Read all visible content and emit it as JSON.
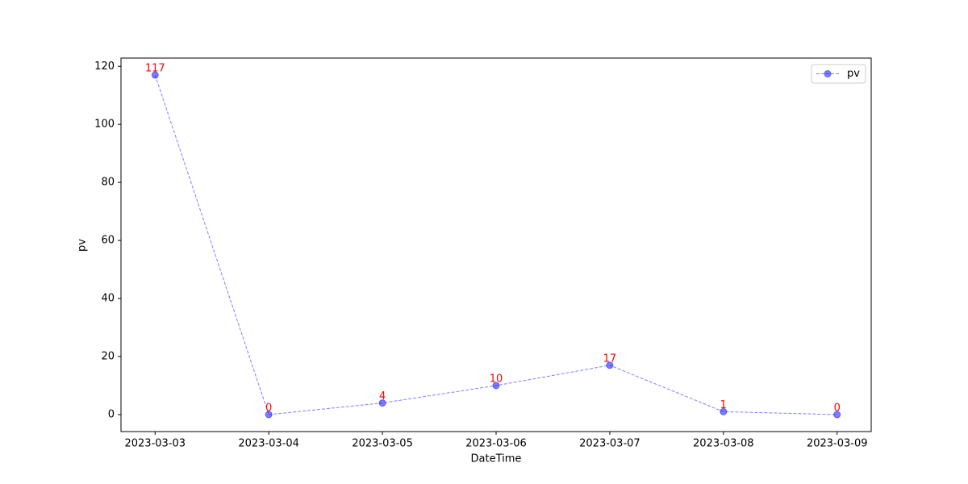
{
  "chart_data": {
    "type": "line",
    "xlabel": "DateTime",
    "ylabel": "pv",
    "categories": [
      "2023-03-03",
      "2023-03-04",
      "2023-03-05",
      "2023-03-06",
      "2023-03-07",
      "2023-03-08",
      "2023-03-09"
    ],
    "series": [
      {
        "name": "pv",
        "color": "#0000ff",
        "label_color": "#ff0000",
        "values": [
          117,
          0,
          4,
          10,
          17,
          1,
          0
        ]
      }
    ],
    "ylim": [
      -5.85,
      122.85
    ],
    "yticks": [
      0,
      20,
      40,
      60,
      80,
      100,
      120
    ],
    "legend": "upper right",
    "grid": false
  }
}
